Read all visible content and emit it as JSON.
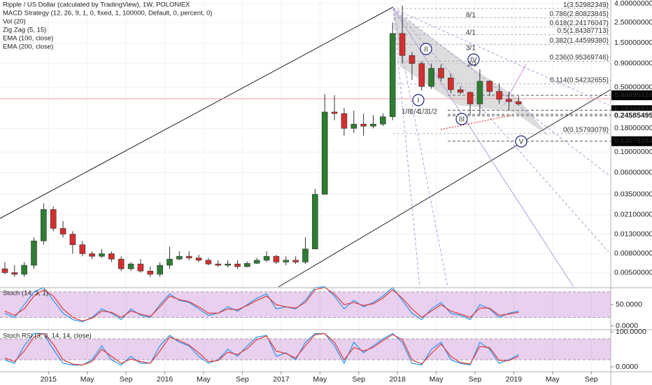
{
  "chart_data": [
    {
      "type": "candlestick",
      "title": "Ripple / US Dollar (calculated by TradingView), 1W, POLONIEX",
      "indicators": [
        "MACD Strategy (12, 26, 9, 1, 0, fixed, 1, 100000, Default, 0, percent, 0)",
        "Vol (20)",
        "Zig Zag (5, 15)",
        "EMA (100, close)",
        "EMA (200, close)"
      ],
      "x": [
        "2014-08",
        "2014-09",
        "2014-10",
        "2014-11",
        "2014-12",
        "2015-01",
        "2015-02",
        "2015-03",
        "2015-04",
        "2015-05",
        "2015-06",
        "2015-07",
        "2015-08",
        "2015-09",
        "2015-10",
        "2015-11",
        "2015-12",
        "2016-01",
        "2016-02",
        "2016-03",
        "2016-04",
        "2016-05",
        "2016-06",
        "2016-07",
        "2016-08",
        "2016-09",
        "2016-10",
        "2016-11",
        "2016-12",
        "2017-01",
        "2017-02",
        "2017-03",
        "2017-04",
        "2017-05",
        "2017-06",
        "2017-07",
        "2017-08",
        "2017-09",
        "2017-10",
        "2017-11",
        "2017-12",
        "2018-01",
        "2018-02",
        "2018-03",
        "2018-04",
        "2018-05",
        "2018-06",
        "2018-07",
        "2018-08",
        "2018-09",
        "2018-10",
        "2018-11",
        "2018-12",
        "2019-01"
      ],
      "open": [
        0.0055,
        0.005,
        0.0048,
        0.006,
        0.011,
        0.024,
        0.015,
        0.013,
        0.01,
        0.008,
        0.0075,
        0.008,
        0.007,
        0.0055,
        0.0062,
        0.0052,
        0.0048,
        0.006,
        0.007,
        0.0075,
        0.0072,
        0.0068,
        0.0062,
        0.006,
        0.0062,
        0.0058,
        0.0063,
        0.0068,
        0.0075,
        0.0065,
        0.0068,
        0.0065,
        0.009,
        0.035,
        0.27,
        0.26,
        0.18,
        0.2,
        0.19,
        0.2,
        0.24,
        1.9,
        1.1,
        0.9,
        0.51,
        0.8,
        0.63,
        0.47,
        0.44,
        0.33,
        0.58,
        0.45,
        0.37,
        0.35
      ],
      "high": [
        0.0065,
        0.006,
        0.0065,
        0.012,
        0.028,
        0.026,
        0.018,
        0.014,
        0.011,
        0.0085,
        0.009,
        0.0085,
        0.0075,
        0.0065,
        0.007,
        0.0058,
        0.0065,
        0.0095,
        0.0085,
        0.0085,
        0.0078,
        0.0072,
        0.0068,
        0.0068,
        0.0068,
        0.0066,
        0.0072,
        0.0085,
        0.0078,
        0.0075,
        0.0075,
        0.012,
        0.04,
        0.42,
        0.41,
        0.3,
        0.28,
        0.26,
        0.25,
        0.26,
        2.5,
        3.8,
        1.2,
        0.95,
        0.9,
        0.88,
        0.7,
        0.51,
        0.45,
        0.78,
        0.6,
        0.55,
        0.45,
        0.4
      ],
      "low": [
        0.0048,
        0.0045,
        0.0045,
        0.0055,
        0.01,
        0.014,
        0.012,
        0.008,
        0.0075,
        0.007,
        0.0072,
        0.0065,
        0.0052,
        0.0052,
        0.005,
        0.0045,
        0.0045,
        0.0055,
        0.0068,
        0.0068,
        0.0065,
        0.006,
        0.0058,
        0.0057,
        0.0055,
        0.0057,
        0.0062,
        0.0065,
        0.0062,
        0.006,
        0.0062,
        0.0062,
        0.009,
        0.035,
        0.22,
        0.15,
        0.16,
        0.15,
        0.18,
        0.19,
        0.22,
        0.9,
        0.6,
        0.46,
        0.48,
        0.58,
        0.43,
        0.42,
        0.25,
        0.25,
        0.4,
        0.33,
        0.28,
        0.32
      ],
      "close": [
        0.005,
        0.0048,
        0.006,
        0.011,
        0.024,
        0.015,
        0.013,
        0.01,
        0.008,
        0.0075,
        0.008,
        0.007,
        0.0055,
        0.0062,
        0.0052,
        0.0048,
        0.006,
        0.007,
        0.0075,
        0.0072,
        0.0068,
        0.0062,
        0.006,
        0.0062,
        0.0058,
        0.0063,
        0.0068,
        0.0075,
        0.0065,
        0.0068,
        0.0065,
        0.009,
        0.035,
        0.27,
        0.26,
        0.18,
        0.2,
        0.19,
        0.2,
        0.24,
        1.9,
        1.1,
        0.9,
        0.51,
        0.8,
        0.63,
        0.47,
        0.44,
        0.33,
        0.58,
        0.45,
        0.37,
        0.35,
        0.33
      ],
      "up_color": "#2e7d32",
      "down_color": "#d32f2f",
      "xlim": [
        "2014-08",
        "2019-11"
      ],
      "xticks": [
        {
          "value": "2015-01",
          "label": "2015"
        },
        {
          "value": "2015-05",
          "label": "May"
        },
        {
          "value": "2015-09",
          "label": "Sep"
        },
        {
          "value": "2016-01",
          "label": "2016"
        },
        {
          "value": "2016-05",
          "label": "May"
        },
        {
          "value": "2016-09",
          "label": "Sep"
        },
        {
          "value": "2017-01",
          "label": "2017"
        },
        {
          "value": "2017-05",
          "label": "May"
        },
        {
          "value": "2017-09",
          "label": "Sep"
        },
        {
          "value": "2018-01",
          "label": "2018"
        },
        {
          "value": "2018-05",
          "label": "May"
        },
        {
          "value": "2018-09",
          "label": "Sep"
        },
        {
          "value": "2019-01",
          "label": "2019"
        },
        {
          "value": "2019-05",
          "label": "May"
        },
        {
          "value": "2019-09",
          "label": "Sep"
        }
      ],
      "ylim": [
        0.0035,
        4.36
      ],
      "log_scale": true,
      "grid": true,
      "yticks": [
        {
          "value": 4,
          "label": "4.00000000"
        },
        {
          "value": 2.5,
          "label": "2.50000000"
        },
        {
          "value": 1.5,
          "label": "1.50000000"
        },
        {
          "value": 0.9,
          "label": "0.90000000"
        },
        {
          "value": 0.5,
          "label": "0.50000000"
        },
        {
          "value": 0.18,
          "label": "0.18000000"
        },
        {
          "value": 0.1,
          "label": "0.10000000"
        },
        {
          "value": 0.06,
          "label": "0.06000000"
        },
        {
          "value": 0.035,
          "label": "0.03500000"
        },
        {
          "value": 0.021,
          "label": "0.02100000"
        },
        {
          "value": 0.013,
          "label": "0.01300000"
        },
        {
          "value": 0.008,
          "label": "0.00800000"
        },
        {
          "value": 0.005,
          "label": "0.00500000"
        }
      ],
      "price_markers": [
        {
          "value": 0.40895126,
          "color": "#000000"
        },
        {
          "value": 0.2553692,
          "label": "0.25536920",
          "color": "#ffffff"
        },
        {
          "value": 0.28268038,
          "color": "#000000"
        },
        {
          "value": 0.24585495,
          "color": "#ffffff"
        },
        {
          "value": 0.13079284,
          "color": "#000000"
        }
      ],
      "fib_levels": [
        {
          "value": 3.52982349,
          "label": "1(3.52982349)"
        },
        {
          "value": 2.80823845,
          "label": "0.786(2.80823845)"
        },
        {
          "value": 2.24176047,
          "label": "0.618(2.24176047)"
        },
        {
          "value": 1.84387713,
          "label": "0.5(1.84387713)"
        },
        {
          "value": 1.4459938,
          "label": "0.382(1.44599380)"
        },
        {
          "value": 0.95369746,
          "label": "0.236(0.95369746)"
        },
        {
          "value": 0.54232655,
          "label": "0.114(0.54232655)"
        },
        {
          "value": 0.15793078,
          "label": "0(0.15793078)"
        }
      ],
      "wave_labels": [
        "I",
        "II",
        "III",
        "IV",
        "V"
      ],
      "fan_labels": [
        "1/8",
        "1/4",
        "1/3",
        "1/2",
        "8/1",
        "4/1",
        "3/1",
        "2/1"
      ]
    },
    {
      "type": "line",
      "title": "Stoch (14, 3, 1)",
      "x": [
        "2014-08",
        "2014-09",
        "2014-10",
        "2014-11",
        "2014-12",
        "2015-01",
        "2015-02",
        "2015-03",
        "2015-04",
        "2015-05",
        "2015-06",
        "2015-07",
        "2015-08",
        "2015-09",
        "2015-10",
        "2015-11",
        "2015-12",
        "2016-01",
        "2016-02",
        "2016-03",
        "2016-04",
        "2016-05",
        "2016-06",
        "2016-07",
        "2016-08",
        "2016-09",
        "2016-10",
        "2016-11",
        "2016-12",
        "2017-01",
        "2017-02",
        "2017-03",
        "2017-04",
        "2017-05",
        "2017-06",
        "2017-07",
        "2017-08",
        "2017-09",
        "2017-10",
        "2017-11",
        "2017-12",
        "2018-01",
        "2018-02",
        "2018-03",
        "2018-04",
        "2018-05",
        "2018-06",
        "2018-07",
        "2018-08",
        "2018-09",
        "2018-10",
        "2018-11",
        "2018-12",
        "2019-01"
      ],
      "series": [
        {
          "color": "#2196f3",
          "values": [
            30,
            20,
            50,
            80,
            90,
            60,
            30,
            15,
            10,
            20,
            40,
            30,
            15,
            40,
            25,
            20,
            50,
            75,
            60,
            55,
            40,
            25,
            30,
            45,
            35,
            50,
            65,
            75,
            40,
            45,
            40,
            60,
            90,
            92,
            70,
            40,
            60,
            45,
            55,
            70,
            90,
            60,
            30,
            15,
            40,
            55,
            30,
            25,
            15,
            50,
            40,
            20,
            30,
            35
          ]
        },
        {
          "color": "#e53935",
          "values": [
            35,
            25,
            40,
            70,
            85,
            70,
            40,
            20,
            12,
            18,
            35,
            32,
            20,
            35,
            28,
            22,
            45,
            70,
            62,
            57,
            45,
            30,
            30,
            40,
            38,
            48,
            60,
            70,
            50,
            45,
            42,
            55,
            85,
            90,
            75,
            50,
            55,
            48,
            52,
            65,
            85,
            65,
            40,
            20,
            35,
            50,
            35,
            28,
            20,
            42,
            42,
            25,
            28,
            32
          ]
        }
      ],
      "band": [
        20,
        80
      ],
      "band_color": "#9c27b0",
      "ylim": [
        -7,
        88
      ],
      "yticks": [
        {
          "value": 0,
          "label": "0.0000"
        },
        {
          "value": 50,
          "label": "50.0000"
        }
      ]
    },
    {
      "type": "line",
      "title": "Stoch RSI (3, 3, 14, 14, close)",
      "x": [
        "2014-08",
        "2014-09",
        "2014-10",
        "2014-11",
        "2014-12",
        "2015-01",
        "2015-02",
        "2015-03",
        "2015-04",
        "2015-05",
        "2015-06",
        "2015-07",
        "2015-08",
        "2015-09",
        "2015-10",
        "2015-11",
        "2015-12",
        "2016-01",
        "2016-02",
        "2016-03",
        "2016-04",
        "2016-05",
        "2016-06",
        "2016-07",
        "2016-08",
        "2016-09",
        "2016-10",
        "2016-11",
        "2016-12",
        "2017-01",
        "2017-02",
        "2017-03",
        "2017-04",
        "2017-05",
        "2017-06",
        "2017-07",
        "2017-08",
        "2017-09",
        "2017-10",
        "2017-11",
        "2017-12",
        "2018-01",
        "2018-02",
        "2018-03",
        "2018-04",
        "2018-05",
        "2018-06",
        "2018-07",
        "2018-08",
        "2018-09",
        "2018-10",
        "2018-11",
        "2018-12",
        "2019-01"
      ],
      "series": [
        {
          "color": "#2196f3",
          "values": [
            20,
            10,
            60,
            95,
            95,
            50,
            10,
            5,
            5,
            20,
            60,
            20,
            5,
            30,
            10,
            10,
            60,
            90,
            70,
            60,
            30,
            10,
            20,
            50,
            30,
            60,
            85,
            90,
            30,
            40,
            20,
            70,
            95,
            95,
            60,
            10,
            70,
            40,
            60,
            80,
            95,
            70,
            10,
            5,
            50,
            70,
            20,
            10,
            5,
            70,
            50,
            10,
            20,
            35
          ]
        },
        {
          "color": "#e53935",
          "values": [
            25,
            15,
            45,
            85,
            95,
            65,
            20,
            8,
            5,
            15,
            50,
            30,
            10,
            22,
            15,
            10,
            45,
            85,
            75,
            62,
            40,
            15,
            18,
            42,
            35,
            52,
            78,
            88,
            45,
            38,
            25,
            60,
            92,
            95,
            70,
            20,
            55,
            45,
            55,
            75,
            92,
            78,
            20,
            8,
            38,
            65,
            30,
            12,
            8,
            58,
            55,
            18,
            18,
            30
          ]
        }
      ],
      "band": [
        20,
        80
      ],
      "band_color": "#9c27b0",
      "ylim": [
        -12,
        104
      ],
      "yticks": [
        {
          "value": 0,
          "label": "0.0000"
        },
        {
          "value": 100,
          "label": "100.0000"
        }
      ]
    }
  ]
}
